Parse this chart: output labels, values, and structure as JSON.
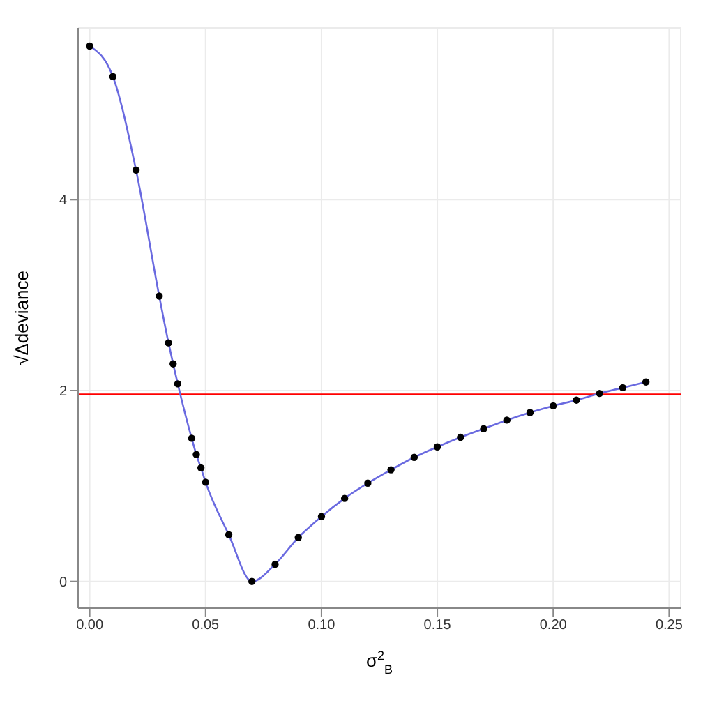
{
  "chart_data": {
    "type": "line",
    "xlabel": "σ$^{2}$$_{B}$",
    "ylabel": "√Δdeviance",
    "x": [
      0,
      0.01,
      0.02,
      0.03,
      0.034,
      0.036,
      0.038,
      0.044,
      0.046,
      0.048,
      0.05,
      0.06,
      0.07,
      0.08,
      0.09,
      0.1,
      0.11,
      0.12,
      0.13,
      0.14,
      0.15,
      0.16,
      0.17,
      0.18,
      0.19,
      0.2,
      0.21,
      0.22,
      0.23,
      0.24
    ],
    "series": [
      {
        "color": "#6a6ae0",
        "values": [
          5.61,
          5.29,
          4.31,
          2.99,
          2.5,
          2.28,
          2.07,
          1.5,
          1.33,
          1.19,
          1.04,
          0.49,
          0,
          0.18,
          0.46,
          0.68,
          0.87,
          1.03,
          1.17,
          1.3,
          1.41,
          1.51,
          1.6,
          1.69,
          1.77,
          1.84,
          1.9,
          1.97,
          2.03,
          2.09
        ]
      },
      {
        "type": "scatter",
        "color": "#000000",
        "marker": "circle",
        "values": [
          5.61,
          5.29,
          4.31,
          2.99,
          2.5,
          2.28,
          2.07,
          1.5,
          1.33,
          1.19,
          1.04,
          0.49,
          0,
          0.18,
          0.46,
          0.68,
          0.87,
          1.03,
          1.17,
          1.3,
          1.41,
          1.51,
          1.6,
          1.69,
          1.77,
          1.84,
          1.9,
          1.97,
          2.03,
          2.09
        ]
      }
    ],
    "xlim": [
      -0.005,
      0.255
    ],
    "ylim": [
      -0.28,
      5.8
    ],
    "xticks": [
      {
        "value": 0,
        "label": "0.00"
      },
      {
        "value": 0.05,
        "label": "0.05"
      },
      {
        "value": 0.1,
        "label": "0.10"
      },
      {
        "value": 0.15,
        "label": "0.15"
      },
      {
        "value": 0.2,
        "label": "0.20"
      },
      {
        "value": 0.25,
        "label": "0.25"
      }
    ],
    "yticks": [
      0,
      2,
      4
    ],
    "ref_lines": [
      {
        "axis": "y",
        "value": 1.96,
        "color": "#ff0000"
      }
    ],
    "grid": true,
    "legend": false
  }
}
